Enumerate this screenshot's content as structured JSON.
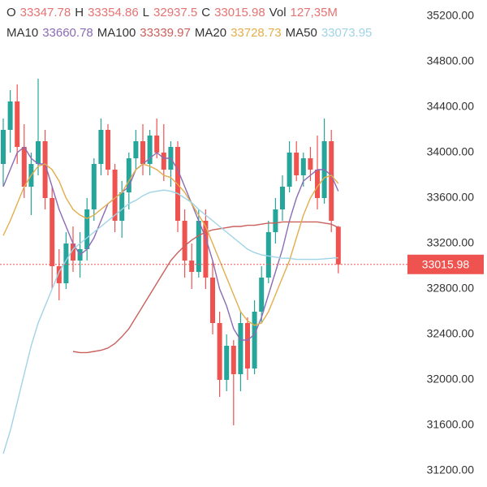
{
  "chart_data": {
    "type": "candlestick",
    "ohlc_labels": [
      "O",
      "H",
      "L",
      "C"
    ],
    "volume_name": "Vol",
    "volume_label": "127,35M",
    "up_color": "#26a69a",
    "down_color": "#ef5350",
    "ylim": [
      31200,
      35200
    ],
    "yticks": [
      {
        "value": 31200,
        "label": "31200.00"
      },
      {
        "value": 31600,
        "label": "31600.00"
      },
      {
        "value": 32000,
        "label": "32000.00"
      },
      {
        "value": 32400,
        "label": "32400.00"
      },
      {
        "value": 32800,
        "label": "32800.00"
      },
      {
        "value": 33200,
        "label": "33200.00"
      },
      {
        "value": 33600,
        "label": "33600.00"
      },
      {
        "value": 34000,
        "label": "34000.00"
      },
      {
        "value": 34400,
        "label": "34400.00"
      },
      {
        "value": 34800,
        "label": "34800.00"
      },
      {
        "value": 35200,
        "label": "35200.00"
      }
    ],
    "candles": [
      [
        33900,
        34300,
        33700,
        34200
      ],
      [
        34200,
        34550,
        34000,
        34450
      ],
      [
        34450,
        34600,
        33900,
        34050
      ],
      [
        34050,
        34250,
        33600,
        33700
      ],
      [
        33700,
        34000,
        33450,
        33900
      ],
      [
        33900,
        34650,
        33800,
        34100
      ],
      [
        34100,
        34200,
        33500,
        33600
      ],
      [
        33600,
        33700,
        32800,
        33000
      ],
      [
        33000,
        33150,
        32700,
        32850
      ],
      [
        32850,
        33300,
        32800,
        33200
      ],
      [
        33200,
        33350,
        32950,
        33050
      ],
      [
        33050,
        33300,
        32900,
        33150
      ],
      [
        33150,
        33600,
        33050,
        33500
      ],
      [
        33500,
        33950,
        33400,
        33900
      ],
      [
        33900,
        34300,
        33800,
        34200
      ],
      [
        34200,
        34250,
        33800,
        33850
      ],
      [
        33850,
        33900,
        33300,
        33400
      ],
      [
        33400,
        33750,
        33250,
        33650
      ],
      [
        33650,
        34000,
        33500,
        33950
      ],
      [
        33950,
        34200,
        33850,
        34100
      ],
      [
        34100,
        34250,
        33800,
        33900
      ],
      [
        33900,
        34200,
        33800,
        34150
      ],
      [
        34150,
        34300,
        33950,
        34000
      ],
      [
        34000,
        34250,
        33750,
        33850
      ],
      [
        33850,
        34100,
        33700,
        34050
      ],
      [
        34050,
        34100,
        33300,
        33400
      ],
      [
        33400,
        33500,
        32900,
        33050
      ],
      [
        33050,
        33200,
        32800,
        32950
      ],
      [
        32950,
        33500,
        32900,
        33400
      ],
      [
        33400,
        33500,
        32800,
        32900
      ],
      [
        32900,
        33050,
        32400,
        32500
      ],
      [
        32500,
        32600,
        31850,
        32000
      ],
      [
        32000,
        32400,
        31900,
        32300
      ],
      [
        32300,
        32350,
        31600,
        32050
      ],
      [
        32050,
        32600,
        31900,
        32500
      ],
      [
        32500,
        32550,
        32000,
        32100
      ],
      [
        32100,
        32700,
        32050,
        32600
      ],
      [
        32600,
        33000,
        32500,
        32900
      ],
      [
        32900,
        33400,
        32850,
        33300
      ],
      [
        33300,
        33600,
        33200,
        33500
      ],
      [
        33500,
        33800,
        33400,
        33700
      ],
      [
        33700,
        34100,
        33650,
        34000
      ],
      [
        34000,
        34100,
        33750,
        33800
      ],
      [
        33800,
        34000,
        33700,
        33950
      ],
      [
        33950,
        34050,
        33750,
        33850
      ],
      [
        33850,
        34150,
        33500,
        33600
      ],
      [
        33600,
        34300,
        33550,
        34100
      ],
      [
        34100,
        34200,
        33300,
        33400
      ],
      [
        33347.78,
        33354.86,
        32937.5,
        33015.98
      ]
    ],
    "series": [
      {
        "name": "MA10",
        "color": "#8a6bb5",
        "values": [
          33700,
          33850,
          34000,
          34050,
          33950,
          33900,
          33900,
          33700,
          33500,
          33350,
          33200,
          33100,
          33150,
          33250,
          33400,
          33550,
          33600,
          33650,
          33700,
          33850,
          33900,
          33950,
          34000,
          33950,
          33950,
          33850,
          33700,
          33550,
          33400,
          33250,
          33050,
          32800,
          32650,
          32450,
          32350,
          32350,
          32400,
          32550,
          32750,
          32950,
          33150,
          33400,
          33600,
          33750,
          33800,
          33850,
          33850,
          33800,
          33660.78
        ]
      },
      {
        "name": "MA100",
        "color": "#c9605c",
        "values": [
          null,
          null,
          null,
          null,
          null,
          null,
          null,
          null,
          null,
          null,
          32250,
          32240,
          32240,
          32250,
          32260,
          32280,
          32320,
          32380,
          32450,
          32550,
          32650,
          32750,
          32850,
          32950,
          33050,
          33120,
          33180,
          33230,
          33270,
          33300,
          33320,
          33330,
          33340,
          33350,
          33350,
          33360,
          33360,
          33370,
          33380,
          33380,
          33390,
          33390,
          33390,
          33390,
          33390,
          33390,
          33380,
          33370,
          33339.97
        ]
      },
      {
        "name": "MA20",
        "color": "#e3ad4c",
        "values": [
          33270,
          33400,
          33550,
          33700,
          33800,
          33880,
          33900,
          33850,
          33750,
          33600,
          33500,
          33450,
          33420,
          33450,
          33500,
          33550,
          33600,
          33650,
          33750,
          33850,
          33900,
          33880,
          33850,
          33800,
          33780,
          33720,
          33650,
          33550,
          33450,
          33350,
          33200,
          33050,
          32900,
          32750,
          32600,
          32520,
          32480,
          32500,
          32600,
          32750,
          32900,
          33050,
          33250,
          33450,
          33600,
          33700,
          33780,
          33800,
          33728.73
        ]
      },
      {
        "name": "MA50",
        "color": "#9fd3e6",
        "values": [
          31350,
          31550,
          31800,
          32050,
          32300,
          32500,
          32650,
          32800,
          32950,
          33050,
          33150,
          33200,
          33250,
          33300,
          33350,
          33400,
          33450,
          33500,
          33550,
          33580,
          33620,
          33650,
          33660,
          33670,
          33660,
          33640,
          33600,
          33560,
          33500,
          33450,
          33400,
          33350,
          33300,
          33250,
          33200,
          33150,
          33120,
          33100,
          33090,
          33080,
          33070,
          33070,
          33060,
          33060,
          33060,
          33060,
          33065,
          33070,
          33073.95
        ]
      }
    ]
  }
}
